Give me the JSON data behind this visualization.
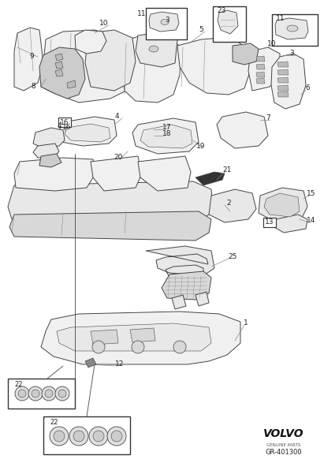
{
  "fig_width": 4.11,
  "fig_height": 6.01,
  "dpi": 100,
  "bg_color": "#ffffff",
  "lc": "#444444",
  "lc_light": "#888888",
  "fc_main": "#f0f0f0",
  "fc_mid": "#e8e8e8",
  "fc_dark": "#d8d8d8",
  "fc_darker": "#cccccc",
  "volvo_text": "VOLVO",
  "genuine_parts": "GENUINE PARTS",
  "part_code": "GR-401300"
}
